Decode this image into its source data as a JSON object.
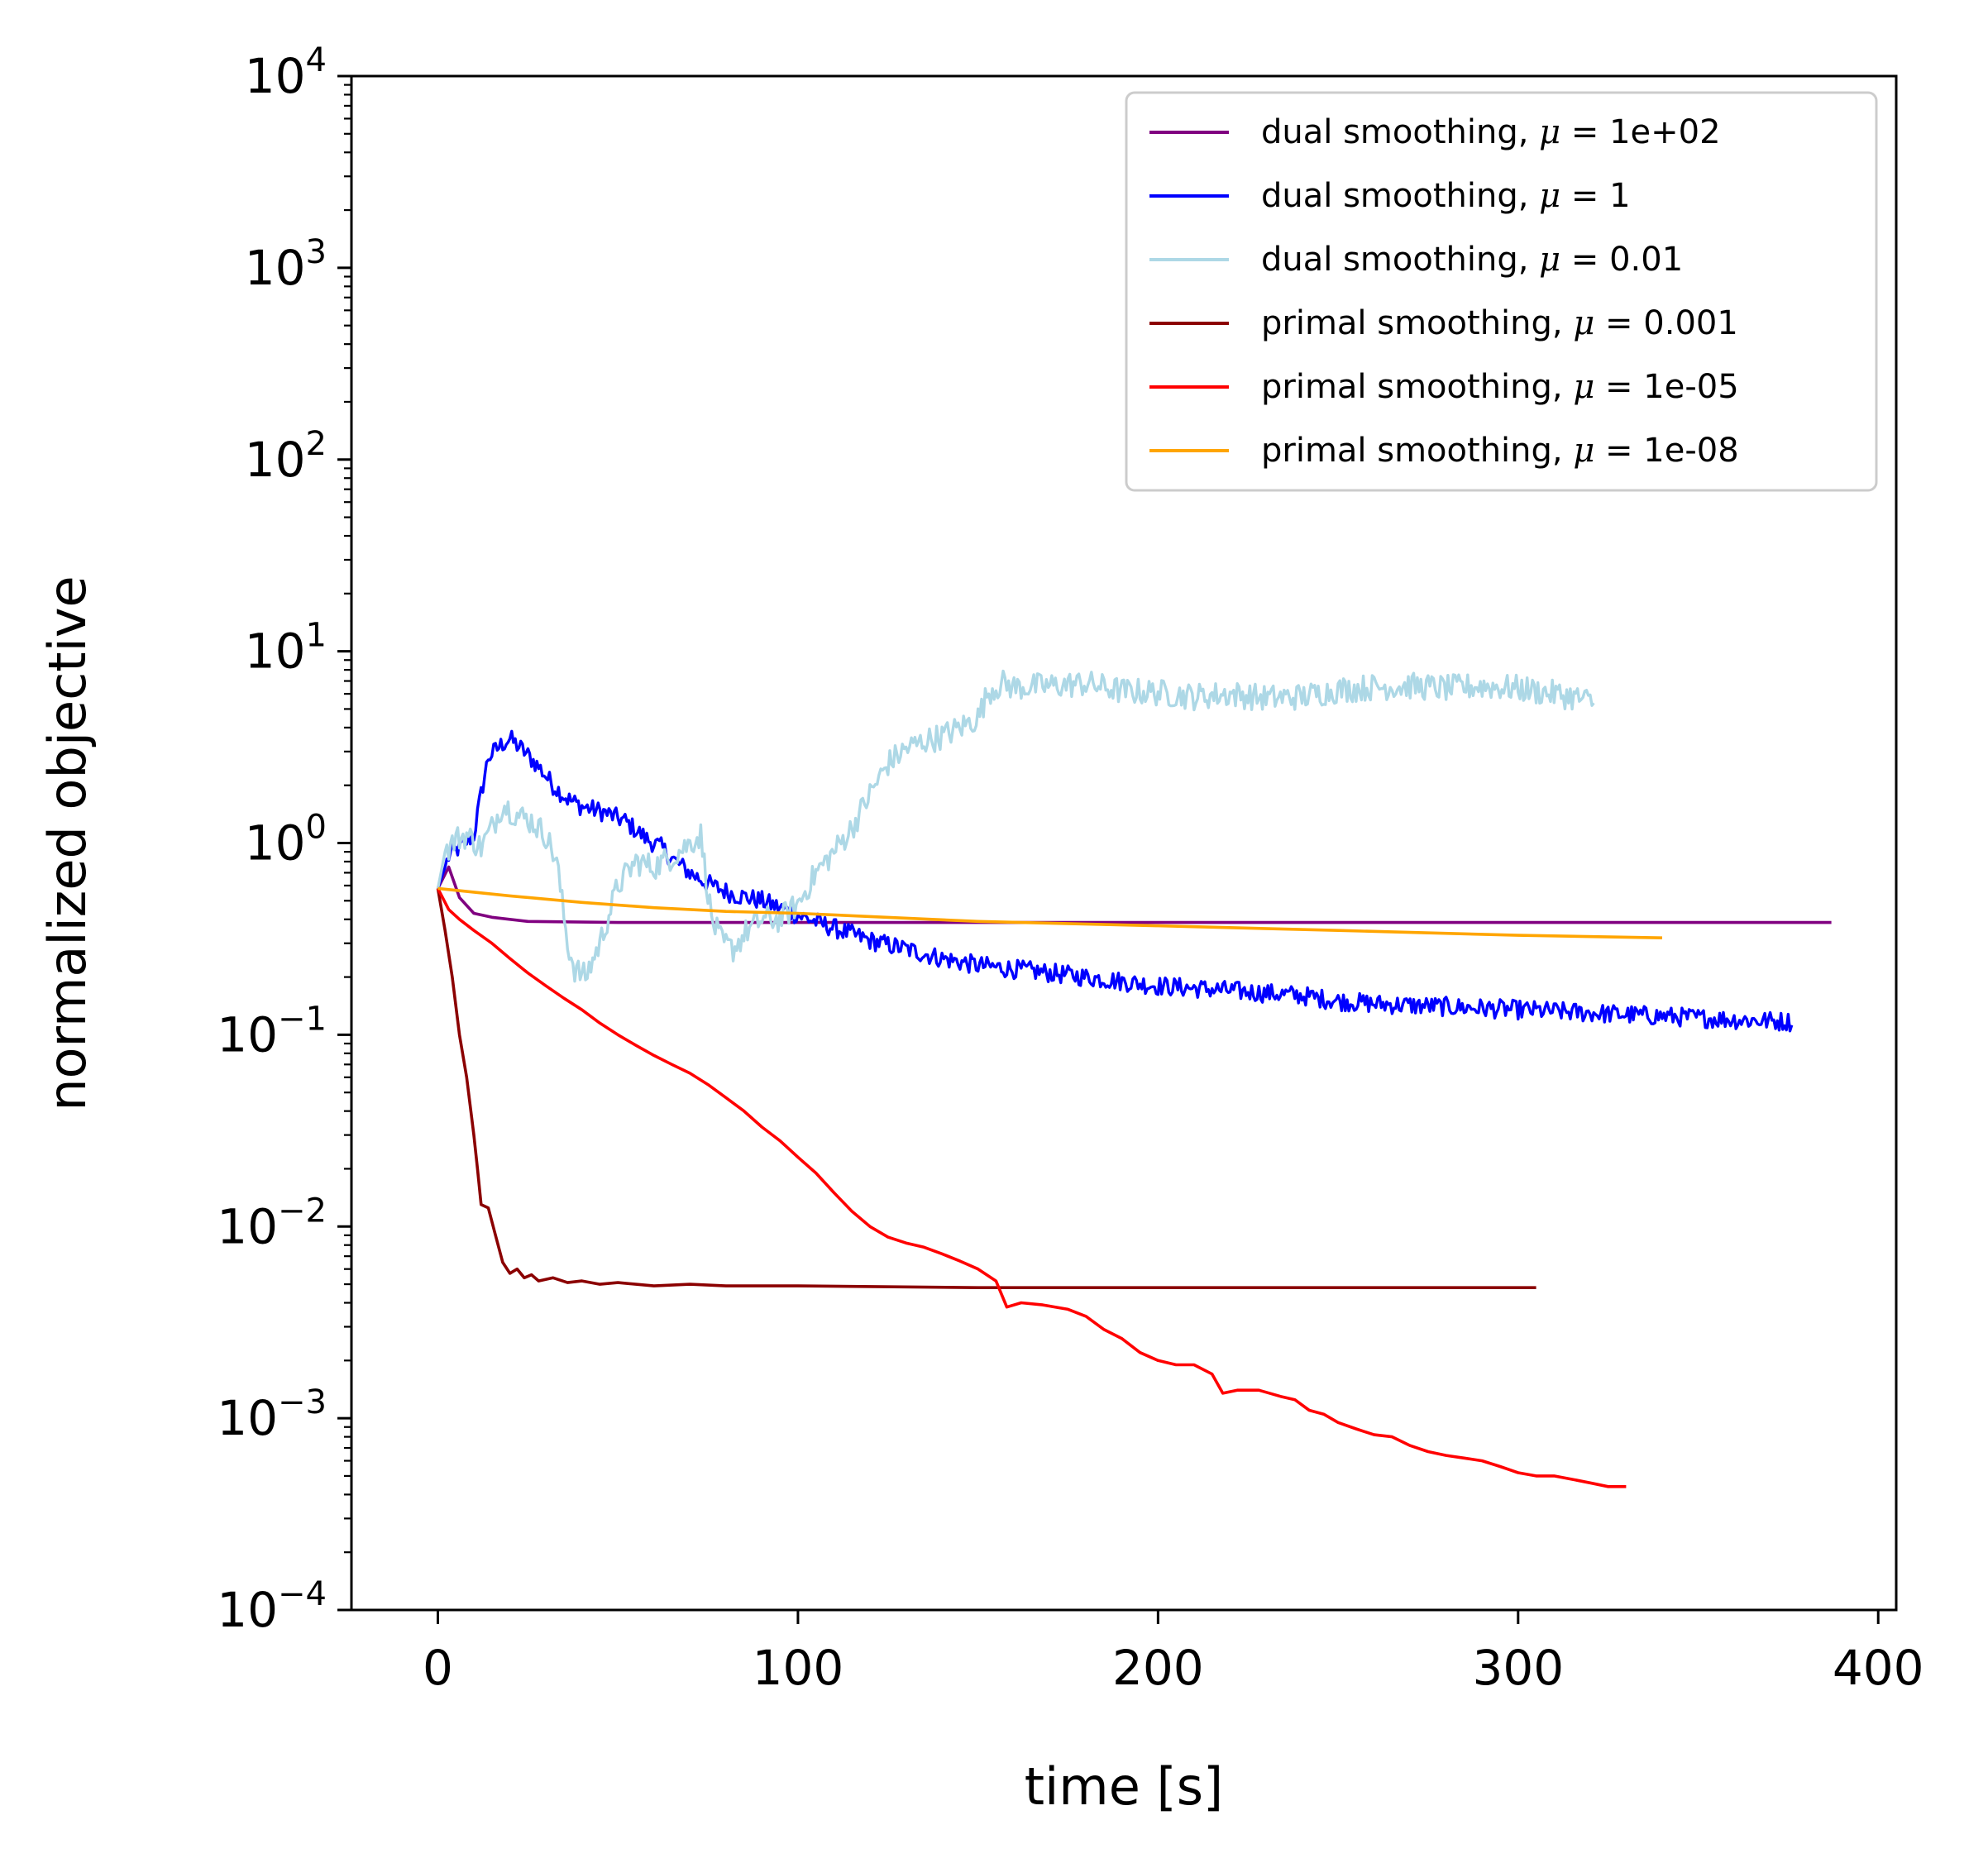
{
  "chart_data": {
    "type": "line",
    "title": "",
    "xlabel": "time [s]",
    "ylabel": "normalized objective",
    "xlim": [
      -24,
      405
    ],
    "ylim": [
      0.0001,
      10000
    ],
    "yscale": "log",
    "xticks": [
      0,
      100,
      200,
      300,
      400
    ],
    "xtick_labels": [
      "0",
      "100",
      "200",
      "300",
      "400"
    ],
    "yticks": [
      {
        "value": 0.0001,
        "base": "10",
        "exp": "−4"
      },
      {
        "value": 0.001,
        "base": "10",
        "exp": "−3"
      },
      {
        "value": 0.01,
        "base": "10",
        "exp": "−2"
      },
      {
        "value": 0.1,
        "base": "10",
        "exp": "−1"
      },
      {
        "value": 1,
        "base": "10",
        "exp": "0"
      },
      {
        "value": 10,
        "base": "10",
        "exp": "1"
      },
      {
        "value": 100,
        "base": "10",
        "exp": "2"
      },
      {
        "value": 1000,
        "base": "10",
        "exp": "3"
      },
      {
        "value": 10000,
        "base": "10",
        "exp": "4"
      }
    ],
    "grid": false,
    "legend_position": "top-right",
    "series": [
      {
        "name": "dual smoothing, μ = 1e+02",
        "label_prefix": "dual smoothing,",
        "mu_text": "μ",
        "label_suffix": "= 1e+02",
        "color": "#800080",
        "noise": 0,
        "points": [
          [
            0,
            0.58
          ],
          [
            3,
            0.75
          ],
          [
            6,
            0.52
          ],
          [
            10,
            0.43
          ],
          [
            15,
            0.41
          ],
          [
            25,
            0.39
          ],
          [
            50,
            0.385
          ],
          [
            100,
            0.385
          ],
          [
            200,
            0.385
          ],
          [
            300,
            0.385
          ],
          [
            387,
            0.385
          ]
        ]
      },
      {
        "name": "dual smoothing, μ = 1",
        "label_prefix": "dual smoothing,",
        "mu_text": "μ",
        "label_suffix": "= 1",
        "color": "#0000ff",
        "noise": 0.05,
        "points": [
          [
            0,
            0.58
          ],
          [
            3,
            0.85
          ],
          [
            6,
            0.95
          ],
          [
            10,
            1.1
          ],
          [
            12,
            1.8
          ],
          [
            14,
            2.8
          ],
          [
            18,
            3.3
          ],
          [
            20,
            3.5
          ],
          [
            24,
            3.0
          ],
          [
            28,
            2.5
          ],
          [
            32,
            2.0
          ],
          [
            36,
            1.7
          ],
          [
            40,
            1.55
          ],
          [
            46,
            1.45
          ],
          [
            52,
            1.3
          ],
          [
            58,
            1.05
          ],
          [
            62,
            0.95
          ],
          [
            66,
            0.8
          ],
          [
            70,
            0.7
          ],
          [
            76,
            0.6
          ],
          [
            82,
            0.54
          ],
          [
            90,
            0.5
          ],
          [
            100,
            0.42
          ],
          [
            110,
            0.36
          ],
          [
            120,
            0.31
          ],
          [
            130,
            0.28
          ],
          [
            140,
            0.25
          ],
          [
            150,
            0.23
          ],
          [
            160,
            0.22
          ],
          [
            170,
            0.21
          ],
          [
            180,
            0.2
          ],
          [
            200,
            0.18
          ],
          [
            220,
            0.17
          ],
          [
            240,
            0.16
          ],
          [
            250,
            0.15
          ],
          [
            260,
            0.145
          ],
          [
            280,
            0.14
          ],
          [
            300,
            0.135
          ],
          [
            320,
            0.13
          ],
          [
            340,
            0.125
          ],
          [
            360,
            0.12
          ],
          [
            376,
            0.117
          ]
        ]
      },
      {
        "name": "dual smoothing, μ = 0.01",
        "label_prefix": "dual smoothing,",
        "mu_text": "μ",
        "label_suffix": "= 0.01",
        "color": "#add8e6",
        "noise": 0.07,
        "points": [
          [
            0,
            0.58
          ],
          [
            2,
            0.9
          ],
          [
            5,
            1.05
          ],
          [
            8,
            1.1
          ],
          [
            12,
            0.95
          ],
          [
            15,
            1.2
          ],
          [
            18,
            1.6
          ],
          [
            22,
            1.4
          ],
          [
            26,
            1.3
          ],
          [
            30,
            1.1
          ],
          [
            33,
            0.8
          ],
          [
            36,
            0.3
          ],
          [
            38,
            0.22
          ],
          [
            41,
            0.2
          ],
          [
            45,
            0.3
          ],
          [
            50,
            0.6
          ],
          [
            55,
            0.8
          ],
          [
            60,
            0.75
          ],
          [
            65,
            0.85
          ],
          [
            70,
            1.0
          ],
          [
            73,
            1.1
          ],
          [
            76,
            0.4
          ],
          [
            79,
            0.3
          ],
          [
            82,
            0.28
          ],
          [
            86,
            0.35
          ],
          [
            90,
            0.4
          ],
          [
            95,
            0.4
          ],
          [
            100,
            0.48
          ],
          [
            105,
            0.7
          ],
          [
            110,
            0.9
          ],
          [
            115,
            1.2
          ],
          [
            120,
            1.8
          ],
          [
            125,
            2.6
          ],
          [
            130,
            3.1
          ],
          [
            135,
            3.4
          ],
          [
            140,
            3.6
          ],
          [
            145,
            4.0
          ],
          [
            150,
            4.5
          ],
          [
            153,
            6.2
          ],
          [
            157,
            6.8
          ],
          [
            160,
            6.5
          ],
          [
            170,
            6.6
          ],
          [
            180,
            6.8
          ],
          [
            190,
            6.2
          ],
          [
            200,
            6.1
          ],
          [
            210,
            5.8
          ],
          [
            220,
            6.0
          ],
          [
            230,
            5.7
          ],
          [
            240,
            5.8
          ],
          [
            250,
            6.3
          ],
          [
            260,
            6.5
          ],
          [
            270,
            6.6
          ],
          [
            280,
            6.4
          ],
          [
            290,
            6.6
          ],
          [
            300,
            6.4
          ],
          [
            310,
            6.0
          ],
          [
            315,
            5.8
          ],
          [
            321,
            5.4
          ]
        ]
      },
      {
        "name": "primal smoothing, μ = 0.001",
        "label_prefix": "primal smoothing,",
        "mu_text": "μ",
        "label_suffix": "= 0.001",
        "color": "#8b0000",
        "noise": 0,
        "points": [
          [
            0,
            0.58
          ],
          [
            2,
            0.35
          ],
          [
            4,
            0.2
          ],
          [
            6,
            0.1
          ],
          [
            8,
            0.06
          ],
          [
            10,
            0.03
          ],
          [
            11,
            0.02
          ],
          [
            12,
            0.013
          ],
          [
            14,
            0.0125
          ],
          [
            16,
            0.009
          ],
          [
            18,
            0.0065
          ],
          [
            20,
            0.0057
          ],
          [
            22,
            0.006
          ],
          [
            24,
            0.0054
          ],
          [
            26,
            0.0056
          ],
          [
            28,
            0.0052
          ],
          [
            32,
            0.0054
          ],
          [
            36,
            0.0051
          ],
          [
            40,
            0.0052
          ],
          [
            45,
            0.005
          ],
          [
            50,
            0.0051
          ],
          [
            60,
            0.0049
          ],
          [
            70,
            0.005
          ],
          [
            80,
            0.0049
          ],
          [
            100,
            0.0049
          ],
          [
            150,
            0.0048
          ],
          [
            200,
            0.0048
          ],
          [
            250,
            0.0048
          ],
          [
            305,
            0.0048
          ]
        ]
      },
      {
        "name": "primal smoothing, μ = 1e-05",
        "label_prefix": "primal smoothing,",
        "mu_text": "μ",
        "label_suffix": "= 1e-05",
        "color": "#ff0000",
        "noise": 0,
        "points": [
          [
            0,
            0.58
          ],
          [
            3,
            0.45
          ],
          [
            6,
            0.4
          ],
          [
            10,
            0.35
          ],
          [
            15,
            0.3
          ],
          [
            20,
            0.25
          ],
          [
            25,
            0.21
          ],
          [
            30,
            0.18
          ],
          [
            35,
            0.155
          ],
          [
            40,
            0.135
          ],
          [
            45,
            0.115
          ],
          [
            50,
            0.1
          ],
          [
            55,
            0.088
          ],
          [
            60,
            0.078
          ],
          [
            65,
            0.07
          ],
          [
            70,
            0.063
          ],
          [
            75,
            0.055
          ],
          [
            80,
            0.047
          ],
          [
            85,
            0.04
          ],
          [
            90,
            0.033
          ],
          [
            95,
            0.028
          ],
          [
            100,
            0.023
          ],
          [
            105,
            0.019
          ],
          [
            110,
            0.015
          ],
          [
            115,
            0.012
          ],
          [
            120,
            0.01
          ],
          [
            125,
            0.0088
          ],
          [
            130,
            0.0082
          ],
          [
            135,
            0.0078
          ],
          [
            140,
            0.0072
          ],
          [
            145,
            0.0066
          ],
          [
            150,
            0.006
          ],
          [
            155,
            0.0052
          ],
          [
            158,
            0.0038
          ],
          [
            162,
            0.004
          ],
          [
            168,
            0.0039
          ],
          [
            175,
            0.0037
          ],
          [
            180,
            0.0034
          ],
          [
            185,
            0.0029
          ],
          [
            190,
            0.0026
          ],
          [
            195,
            0.0022
          ],
          [
            200,
            0.002
          ],
          [
            205,
            0.0019
          ],
          [
            210,
            0.0019
          ],
          [
            215,
            0.0017
          ],
          [
            218,
            0.00135
          ],
          [
            222,
            0.0014
          ],
          [
            228,
            0.0014
          ],
          [
            234,
            0.0013
          ],
          [
            238,
            0.00125
          ],
          [
            242,
            0.0011
          ],
          [
            246,
            0.00105
          ],
          [
            250,
            0.00095
          ],
          [
            255,
            0.00088
          ],
          [
            260,
            0.00082
          ],
          [
            265,
            0.0008
          ],
          [
            270,
            0.00072
          ],
          [
            275,
            0.00067
          ],
          [
            280,
            0.00064
          ],
          [
            285,
            0.00062
          ],
          [
            290,
            0.0006
          ],
          [
            295,
            0.00056
          ],
          [
            300,
            0.00052
          ],
          [
            305,
            0.0005
          ],
          [
            310,
            0.0005
          ],
          [
            315,
            0.00048
          ],
          [
            320,
            0.00046
          ],
          [
            325,
            0.00044
          ],
          [
            330,
            0.00044
          ]
        ]
      },
      {
        "name": "primal smoothing, μ = 1e-08",
        "label_prefix": "primal smoothing,",
        "mu_text": "μ",
        "label_suffix": "= 1e-08",
        "color": "#ffa500",
        "noise": 0,
        "points": [
          [
            0,
            0.58
          ],
          [
            20,
            0.53
          ],
          [
            40,
            0.49
          ],
          [
            60,
            0.46
          ],
          [
            80,
            0.44
          ],
          [
            100,
            0.43
          ],
          [
            150,
            0.39
          ],
          [
            200,
            0.37
          ],
          [
            250,
            0.35
          ],
          [
            300,
            0.33
          ],
          [
            340,
            0.32
          ]
        ]
      }
    ]
  }
}
